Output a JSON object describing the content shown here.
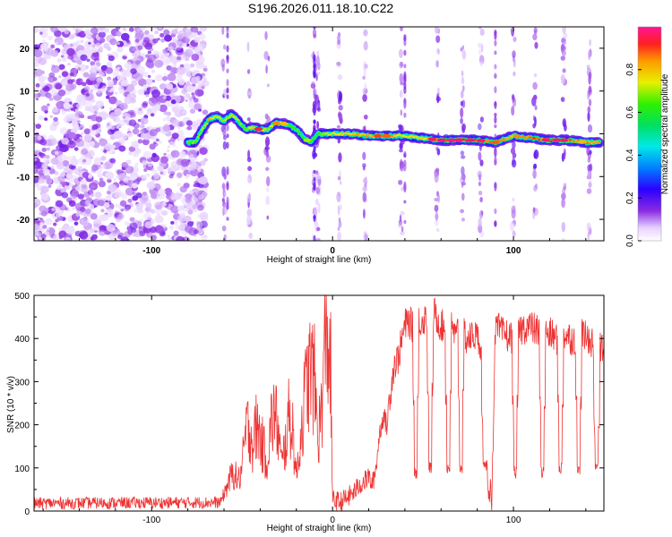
{
  "title": "S196.2026.011.18.10.C22",
  "chart_data": [
    {
      "type": "heatmap",
      "title": "S196.2026.011.18.10.C22",
      "xlabel": "Height of straight line (km)",
      "ylabel": "Frequency (Hz)",
      "xlim": [
        -165,
        150
      ],
      "ylim": [
        -25,
        25
      ],
      "x_ticks": [
        -100,
        0,
        100
      ],
      "y_ticks": [
        -20,
        -10,
        0,
        10,
        20
      ],
      "x_tick_labels": [
        "-100",
        "0",
        "100"
      ],
      "y_tick_labels": [
        "-20",
        "-10",
        "0",
        "10",
        "20"
      ],
      "colorbar": {
        "label": "Normalized spectral amplitude",
        "range": [
          0,
          1
        ],
        "ticks": [
          "0.0",
          "0.2",
          "0.4",
          "0.6",
          "0.8"
        ],
        "tick_values": [
          0,
          0.2,
          0.4,
          0.6,
          0.8
        ]
      },
      "noise_region_x": [
        -165,
        -70
      ],
      "ridge": {
        "x": [
          -80,
          -76,
          -72,
          -68,
          -64,
          -60,
          -56,
          -52,
          -48,
          -44,
          -40,
          -36,
          -32,
          -28,
          -24,
          -20,
          -16,
          -12,
          -8,
          -4,
          0,
          10,
          20,
          30,
          40,
          50,
          60,
          70,
          80,
          90,
          100,
          110,
          120,
          130,
          140,
          148
        ],
        "freq": [
          -2,
          -2,
          1,
          3.5,
          4,
          3,
          4.5,
          3,
          1,
          1.5,
          1,
          1,
          2.5,
          2.5,
          2,
          1,
          -1,
          -2,
          0,
          0,
          0,
          0,
          -0.5,
          -0.5,
          -0.5,
          -1,
          -1.5,
          -1.5,
          -1.5,
          -2,
          -0.5,
          -1,
          -1.5,
          -1.5,
          -2,
          -2
        ],
        "amp": [
          0.45,
          0.5,
          0.55,
          0.85,
          0.6,
          0.55,
          0.65,
          0.55,
          0.5,
          0.7,
          0.9,
          0.45,
          0.85,
          0.6,
          0.5,
          0.45,
          0.4,
          0.4,
          0.45,
          0.6,
          0.65,
          0.75,
          0.8,
          0.85,
          0.6,
          0.7,
          0.95,
          0.95,
          0.95,
          0.9,
          0.75,
          0.9,
          0.95,
          0.95,
          0.85,
          0.8
        ]
      }
    },
    {
      "type": "line",
      "xlabel": "Height of straight line (km)",
      "ylabel": "SNR (10 * v/v)",
      "xlim": [
        -165,
        150
      ],
      "ylim": [
        0,
        500
      ],
      "x_ticks": [
        -100,
        0,
        100
      ],
      "y_ticks": [
        0,
        100,
        200,
        300,
        400,
        500
      ],
      "x_tick_labels": [
        "-100",
        "0",
        "100"
      ],
      "y_tick_labels": [
        "0",
        "100",
        "200",
        "300",
        "400",
        "500"
      ],
      "color": "#ee3333",
      "series": [
        {
          "name": "SNR",
          "x": [
            -165,
            -62,
            -58,
            -55,
            -52,
            -50,
            -48,
            -46,
            -44,
            -42,
            -40,
            -38,
            -36,
            -34,
            -32,
            -30,
            -28,
            -26,
            -24,
            -22,
            -20,
            -18,
            -16,
            -14,
            -12,
            -10,
            -8,
            -6,
            -4,
            -3,
            -1,
            0,
            4,
            8,
            12,
            16,
            18,
            20,
            22,
            24,
            26,
            28,
            30,
            32,
            34,
            36,
            38,
            40,
            42,
            44,
            48,
            52,
            56,
            60,
            64,
            66,
            68,
            70,
            72,
            74,
            76,
            78,
            80,
            82,
            84,
            86,
            88,
            90,
            92,
            94,
            96,
            98,
            100,
            104,
            108,
            112,
            116,
            120,
            124,
            128,
            132,
            136,
            138,
            140,
            142,
            144,
            146,
            148
          ],
          "base": [
            18,
            20,
            60,
            90,
            70,
            100,
            180,
            200,
            150,
            200,
            170,
            140,
            120,
            200,
            230,
            180,
            100,
            160,
            220,
            190,
            80,
            160,
            240,
            300,
            330,
            300,
            170,
            240,
            390,
            410,
            320,
            25,
            20,
            30,
            45,
            65,
            70,
            80,
            60,
            100,
            180,
            220,
            200,
            280,
            340,
            350,
            390,
            430,
            440,
            430,
            440,
            450,
            460,
            430,
            420,
            430,
            400,
            430,
            430,
            400,
            400,
            410,
            400,
            390,
            170,
            70,
            30,
            420,
            420,
            410,
            410,
            400,
            410,
            420,
            430,
            420,
            410,
            410,
            400,
            410,
            400,
            400,
            410,
            400,
            400,
            390,
            110,
            380
          ],
          "dips": [
            [
              46,
              90
            ],
            [
              54,
              100
            ],
            [
              64,
              100
            ],
            [
              71,
              100
            ],
            [
              84,
              100
            ],
            [
              101,
              90
            ],
            [
              116,
              90
            ],
            [
              126,
              100
            ],
            [
              136,
              100
            ],
            [
              146,
              110
            ]
          ]
        }
      ]
    }
  ]
}
